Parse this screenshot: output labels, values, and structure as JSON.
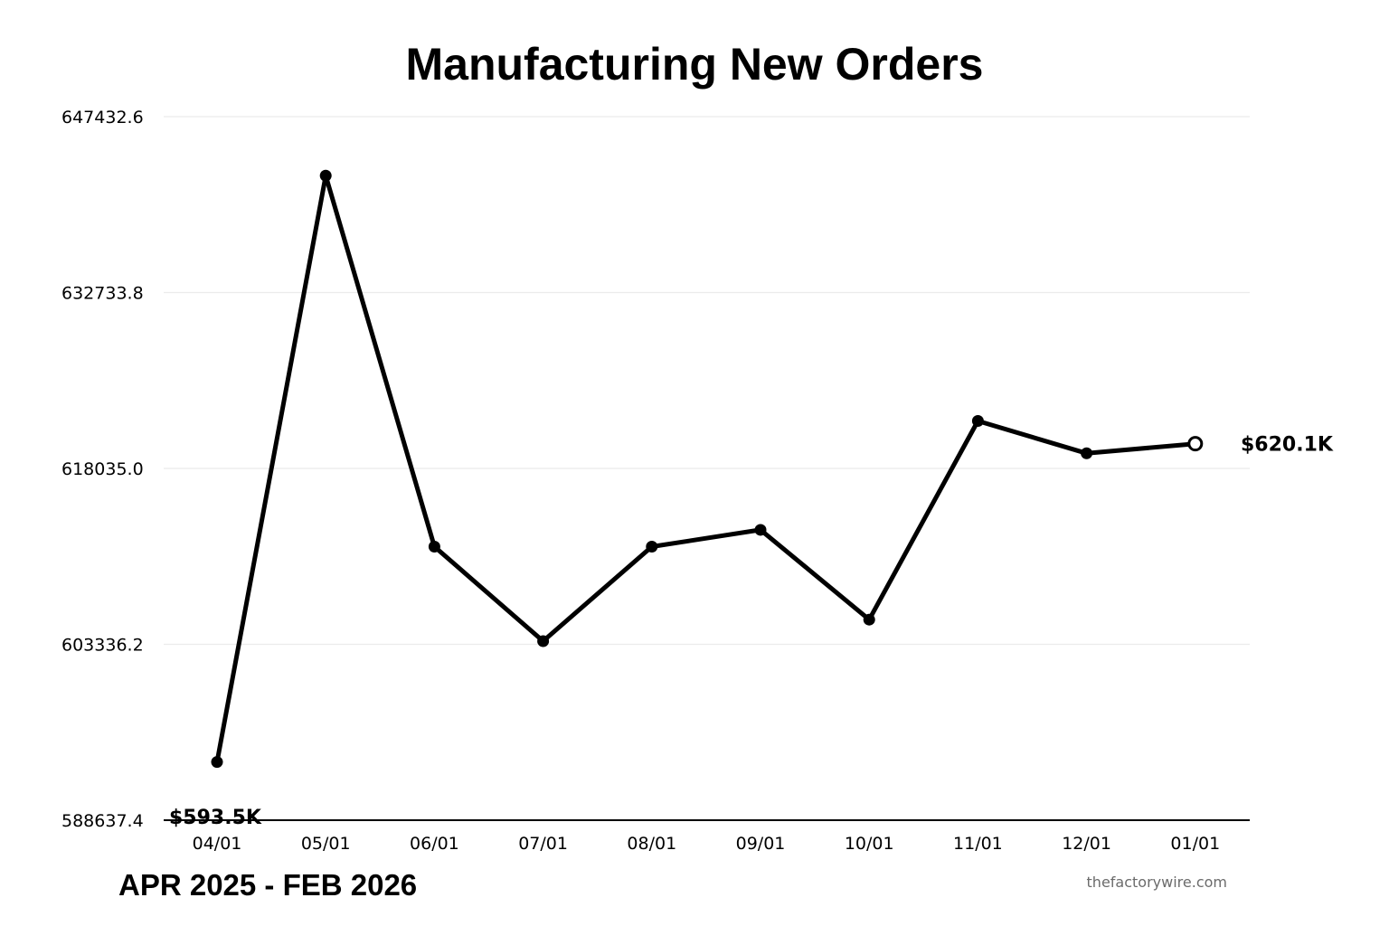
{
  "chart_data": {
    "type": "line",
    "title": "Manufacturing New Orders",
    "categories": [
      "04/01",
      "05/01",
      "06/01",
      "07/01",
      "08/01",
      "09/01",
      "10/01",
      "11/01",
      "12/01",
      "01/01"
    ],
    "series": [
      {
        "values": [
          593500,
          642500,
          611500,
          603600,
          611500,
          612900,
          605400,
          622000,
          619300,
          620100
        ]
      }
    ],
    "yticks": [
      "647432.6",
      "632733.8",
      "618035.0",
      "603336.2",
      "588637.4"
    ],
    "ylim": [
      588637.4,
      647432.6
    ],
    "grid": true,
    "xlabel": "",
    "ylabel": "",
    "start_label": "$593.5K",
    "end_label": "$620.1K",
    "colors": {
      "line": "#000000",
      "grid": "#ebebeb",
      "axis": "#000000",
      "last_marker_fill": "#ffffff"
    }
  },
  "footer": {
    "date_range": "APR 2025 - FEB 2026",
    "source": "thefactorywire.com"
  }
}
